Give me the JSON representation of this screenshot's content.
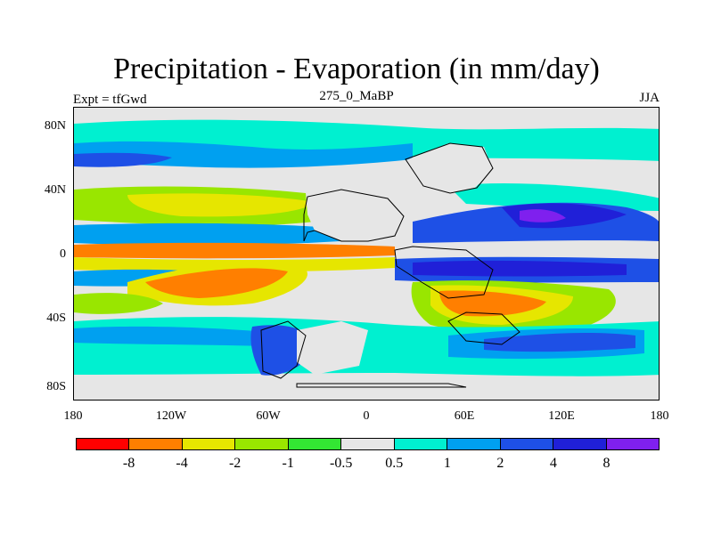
{
  "title": "Precipitation - Evaporation (in mm/day)",
  "left_label": "Expt = tfGwd",
  "center_label": "275_0_MaBP",
  "right_label": "JJA",
  "y_ticks": [
    "80N",
    "40N",
    "0",
    "40S",
    "80S"
  ],
  "x_ticks": [
    "180",
    "120W",
    "60W",
    "0",
    "60E",
    "120E",
    "180"
  ],
  "colorbar": {
    "colors": [
      "#ff0000",
      "#ff7f00",
      "#e6e600",
      "#99e600",
      "#33e633",
      "#e6e6e6",
      "#00f0d0",
      "#00a0f0",
      "#1e50e6",
      "#2020d8",
      "#7f20ee"
    ],
    "labels": [
      "-8",
      "-4",
      "-2",
      "-1",
      "-0.5",
      "0.5",
      "1",
      "2",
      "4",
      "8"
    ]
  }
}
